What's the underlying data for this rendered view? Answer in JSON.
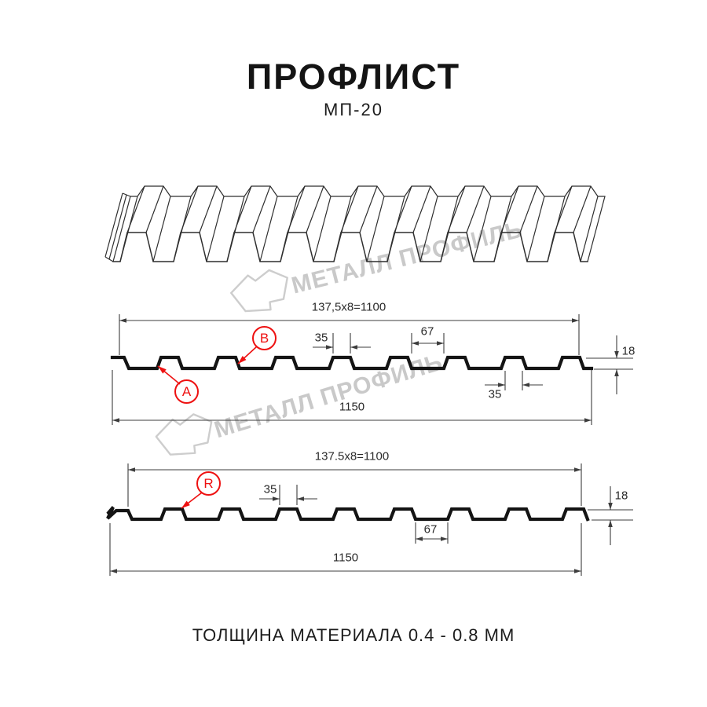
{
  "header": {
    "title": "ПРОФЛИСТ",
    "model": "МП-20"
  },
  "footer": {
    "note": "ТОЛЩИНА МАТЕРИАЛА 0.4 - 0.8 ММ"
  },
  "watermark": {
    "brand": "МЕТАЛЛ ПРОФИЛЬ",
    "color": "#c9c9c9"
  },
  "colors": {
    "red": "#ee1111",
    "profile_line": "#141414",
    "dim_line": "#3d3d3d",
    "sheet_line": "#2e2e2e"
  },
  "dimensions_mm": {
    "overall_width": 1150,
    "working_width": 1100,
    "module_pitch": "137,5",
    "modules_count": 8,
    "rib_top_width": 35,
    "valley_width": 67,
    "profile_height": 18,
    "thickness_range": "0.4 - 0.8"
  },
  "sections": {
    "a": {
      "working_width": "137,5x8=1100",
      "overall_width": "1150",
      "crest_width": "35",
      "valley_width": "67",
      "height": "18",
      "crest_width_2": "35",
      "marker_a": "A",
      "marker_b": "B"
    },
    "r": {
      "working_width": "137.5x8=1100",
      "overall_width": "1150",
      "crest_width": "35",
      "valley_width": "67",
      "height": "18",
      "marker_r": "R"
    }
  }
}
